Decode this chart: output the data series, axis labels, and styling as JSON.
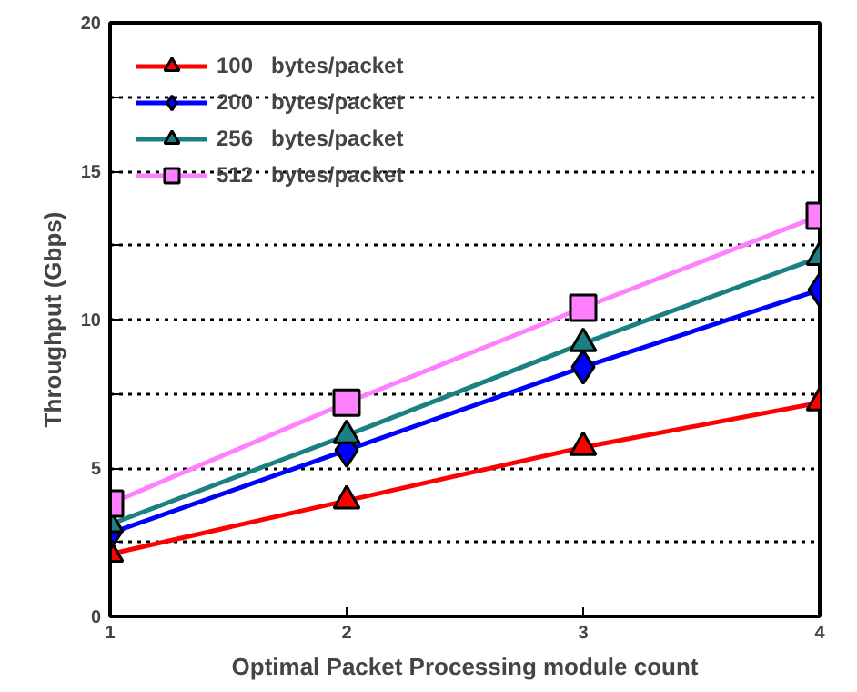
{
  "chart_data": {
    "type": "line",
    "xlabel": "Optimal Packet Processing module count",
    "ylabel": "Throughput (Gbps)",
    "x": [
      1,
      2,
      3,
      4
    ],
    "xlim": [
      1,
      4
    ],
    "xticks": [
      1,
      2,
      3,
      4
    ],
    "ylim": [
      0,
      20
    ],
    "yticks": [
      0,
      {
        "value": 2.5,
        "label": null
      },
      5,
      {
        "value": 7.5,
        "label": null
      },
      10,
      {
        "value": 12.5,
        "label": null
      },
      15,
      {
        "value": 17.5,
        "label": null
      },
      20
    ],
    "grid": "y",
    "legend": "top left",
    "line_style": "solid",
    "series": [
      {
        "name": "100   bytes/packet",
        "color": "#ff0000",
        "marker": "triangle",
        "values": [
          2.1,
          3.9,
          5.7,
          7.2
        ]
      },
      {
        "name": "200   bytes/packet",
        "color": "#0000ff",
        "marker": "diamond",
        "values": [
          2.8,
          5.6,
          8.4,
          11.0
        ]
      },
      {
        "name": "256   bytes/packet",
        "color": "#1a8080",
        "marker": "triangle",
        "values": [
          3.1,
          6.1,
          9.2,
          12.1
        ]
      },
      {
        "name": "512   bytes/packet",
        "color": "#ff80ff",
        "marker": "square",
        "values": [
          3.8,
          7.2,
          10.4,
          13.5
        ]
      }
    ]
  }
}
